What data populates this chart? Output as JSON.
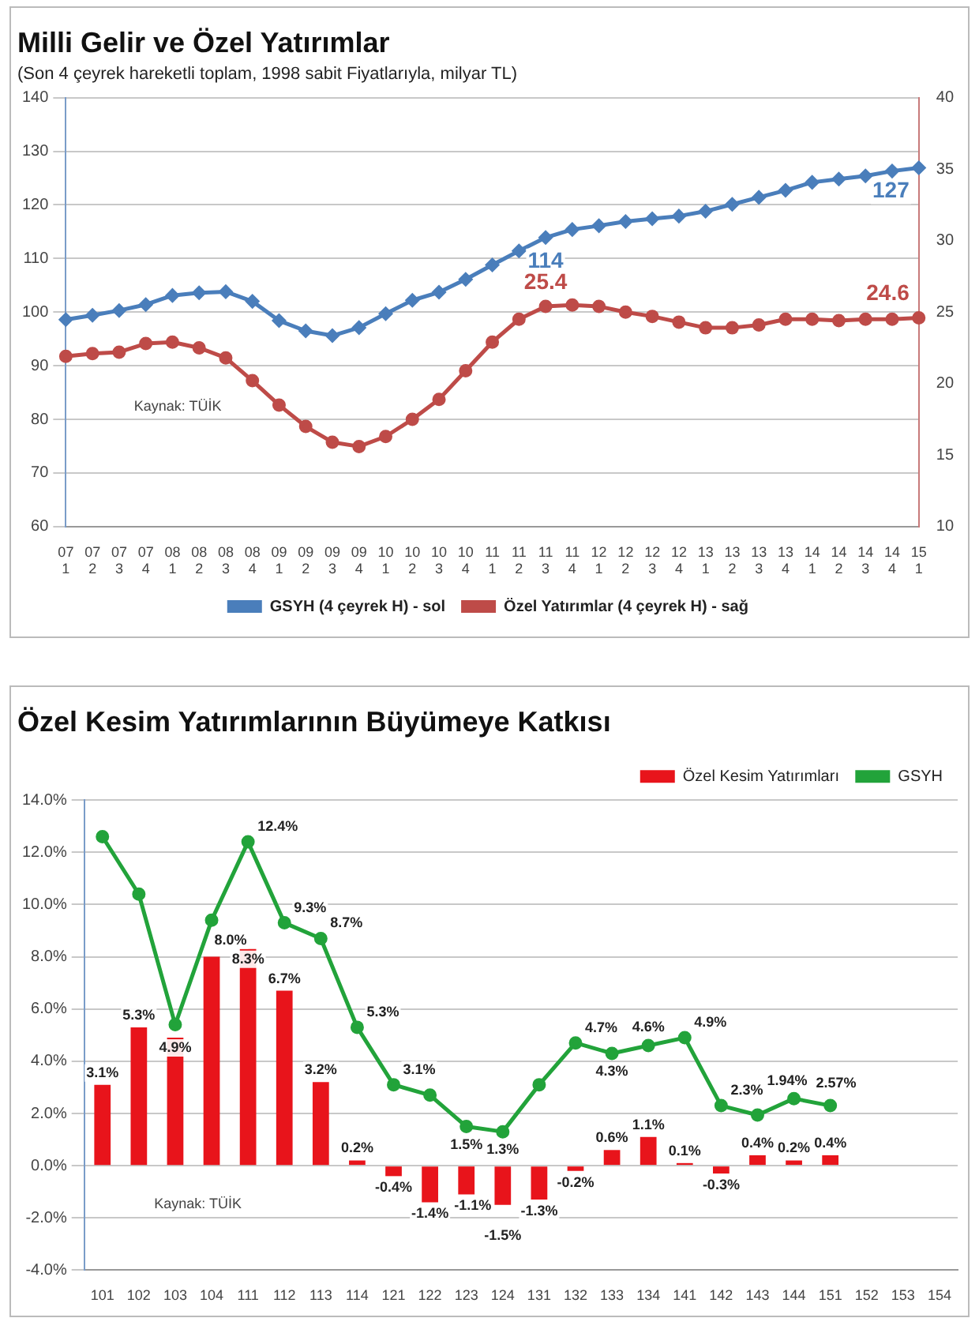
{
  "chart_data": [
    {
      "type": "line",
      "title": "Milli Gelir ve Özel Yatırımlar",
      "subtitle": "(Son 4 çeyrek hareketli toplam, 1998 sabit Fiyatlarıyla, milyar TL)",
      "categories": [
        "07 1",
        "07 2",
        "07 3",
        "07 4",
        "08 1",
        "08 2",
        "08 3",
        "08 4",
        "09 1",
        "09 2",
        "09 3",
        "09 4",
        "10 1",
        "10 2",
        "10 3",
        "10 4",
        "11 1",
        "11 2",
        "11 3",
        "11 4",
        "12 1",
        "12 2",
        "12 3",
        "12 4",
        "13 1",
        "13 2",
        "13 3",
        "13 4",
        "14 1",
        "14 2",
        "14 3",
        "14 4",
        "15 1"
      ],
      "series": [
        {
          "name": "GSYH (4 çeyrek H) - sol",
          "color": "#4a7ebb",
          "marker": "diamond",
          "values": [
            98.6,
            99.4,
            100.3,
            101.4,
            103.1,
            103.6,
            103.8,
            102.0,
            98.4,
            96.5,
            95.6,
            97.1,
            99.7,
            102.2,
            103.7,
            106.1,
            108.8,
            111.4,
            113.9,
            115.4,
            116.1,
            116.9,
            117.4,
            117.9,
            118.8,
            120.1,
            121.4,
            122.7,
            124.2,
            124.8,
            125.4,
            126.3,
            126.9
          ],
          "value_labels": [
            null,
            null,
            null,
            null,
            null,
            null,
            null,
            null,
            null,
            null,
            null,
            null,
            null,
            null,
            null,
            null,
            null,
            null,
            "114",
            null,
            null,
            null,
            null,
            null,
            null,
            null,
            null,
            null,
            null,
            null,
            null,
            null,
            "127"
          ]
        },
        {
          "name": "Özel Yatırımlar (4 çeyrek H) - sağ",
          "color": "#be4b48",
          "marker": "circle",
          "axis": "y2",
          "values": [
            21.9,
            22.1,
            22.2,
            22.8,
            22.9,
            22.5,
            21.8,
            20.2,
            18.5,
            17.0,
            15.9,
            15.6,
            16.3,
            17.5,
            18.9,
            20.9,
            22.9,
            24.5,
            25.4,
            25.5,
            25.4,
            25.0,
            24.7,
            24.3,
            23.9,
            23.9,
            24.1,
            24.5,
            24.5,
            24.4,
            24.5,
            24.5,
            24.6
          ],
          "value_labels": [
            null,
            null,
            null,
            null,
            null,
            null,
            null,
            null,
            null,
            null,
            null,
            null,
            null,
            null,
            null,
            null,
            null,
            null,
            "25.4",
            null,
            null,
            null,
            null,
            null,
            null,
            null,
            null,
            null,
            null,
            null,
            null,
            null,
            "24.6"
          ]
        }
      ],
      "ylim": [
        60,
        140
      ],
      "yticks": [
        60,
        70,
        80,
        90,
        100,
        110,
        120,
        130,
        140
      ],
      "y2lim": [
        10,
        40
      ],
      "y2ticks": [
        10,
        15,
        20,
        25,
        30,
        35,
        40
      ],
      "grid": "y",
      "legend": "bottom",
      "annotations": [
        "Kaynak: TÜİK"
      ]
    },
    {
      "type": "bar",
      "title": "Özel Kesim Yatırımlarının Büyümeye Katkısı",
      "categories": [
        "101",
        "102",
        "103",
        "104",
        "111",
        "112",
        "113",
        "114",
        "121",
        "122",
        "123",
        "124",
        "131",
        "132",
        "133",
        "134",
        "141",
        "142",
        "143",
        "144",
        "151",
        "152",
        "153",
        "154"
      ],
      "series": [
        {
          "name": "Özel Kesim Yatırımları",
          "type": "bar",
          "color": "#e8141b",
          "values": [
            3.1,
            5.3,
            4.9,
            8.0,
            8.3,
            6.7,
            3.2,
            0.2,
            -0.4,
            -1.4,
            -1.1,
            -1.5,
            -1.3,
            -0.2,
            0.6,
            1.1,
            0.1,
            -0.3,
            0.4,
            0.2,
            0.4,
            null,
            null,
            null
          ],
          "value_labels": [
            "3.1%",
            "5.3%",
            "4.9%",
            "8.0%",
            "8.3%",
            "6.7%",
            "3.2%",
            "0.2%",
            "-0.4%",
            "-1.4%",
            "-1.1%",
            "-1.5%",
            "-1.3%",
            "-0.2%",
            "0.6%",
            "1.1%",
            "0.1%",
            "-0.3%",
            "0.4%",
            "0.2%",
            "0.4%",
            null,
            null,
            null
          ]
        },
        {
          "name": "GSYH",
          "type": "line",
          "color": "#22a33a",
          "marker": "circle",
          "values": [
            12.6,
            10.4,
            5.4,
            9.4,
            12.4,
            9.3,
            8.7,
            5.3,
            3.1,
            2.7,
            1.5,
            1.3,
            3.1,
            4.7,
            4.3,
            4.6,
            4.9,
            2.3,
            1.94,
            2.57,
            2.3,
            null,
            null,
            null
          ],
          "value_labels": [
            null,
            null,
            null,
            null,
            "12.4%",
            "9.3%",
            "8.7%",
            "5.3%",
            "3.1%",
            null,
            "1.5%",
            "1.3%",
            null,
            "4.7%",
            "4.3%",
            "4.6%",
            "4.9%",
            "2.3%",
            "1.94%",
            "2.57%",
            null,
            null,
            null,
            null
          ]
        }
      ],
      "ylim": [
        -4,
        14
      ],
      "yticks": [
        {
          "value": -4,
          "label": "-4.0%"
        },
        {
          "value": -2,
          "label": "-2.0%"
        },
        {
          "value": 0,
          "label": "0.0%"
        },
        {
          "value": 2,
          "label": "2.0%"
        },
        {
          "value": 4,
          "label": "4.0%"
        },
        {
          "value": 6,
          "label": "6.0%"
        },
        {
          "value": 8,
          "label": "8.0%"
        },
        {
          "value": 10,
          "label": "10.0%"
        },
        {
          "value": 12,
          "label": "12.0%"
        },
        {
          "value": 14,
          "label": "14.0%"
        }
      ],
      "grid": "y",
      "legend": "top right",
      "annotations": [
        "Kaynak: TÜİK"
      ]
    }
  ]
}
